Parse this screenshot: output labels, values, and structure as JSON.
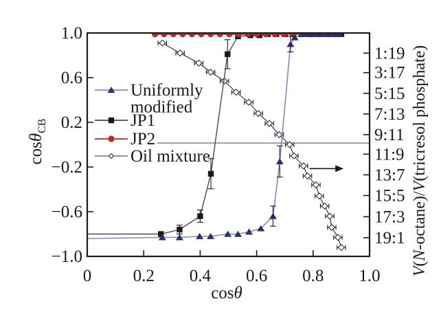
{
  "figure": {
    "background": "#ffffff",
    "frame_color": "#1a1a1a",
    "text_color": "#1a1a1a"
  },
  "chart_data": {
    "type": "line",
    "title": "",
    "x_axis": {
      "title_parts": [
        {
          "t": "cos"
        },
        {
          "t": "θ",
          "italic": true
        }
      ],
      "range": [
        0,
        1.0
      ],
      "ticks": [
        0,
        0.2,
        0.4,
        0.6,
        0.8,
        1.0
      ],
      "tick_labels": [
        "0",
        "0.2",
        "0.4",
        "0.6",
        "0.8",
        "1.0"
      ]
    },
    "left_axis": {
      "title_parts": [
        {
          "t": "cos"
        },
        {
          "t": "θ",
          "italic": true
        },
        {
          "t": "CB",
          "sub": true
        }
      ],
      "range": [
        -1.0,
        1.0
      ],
      "ticks": [
        1.0,
        0.6,
        0.2,
        -0.2,
        -0.6,
        -1.0
      ],
      "tick_labels": [
        "1.0",
        "0.6",
        "0.2",
        "−0.2",
        "−0.6",
        "−1.0"
      ]
    },
    "right_axis": {
      "title_parts": [
        {
          "t": "V",
          "italic": true
        },
        {
          "t": "("
        },
        {
          "t": "N",
          "italic": true
        },
        {
          "t": "-octane)/"
        },
        {
          "t": "V",
          "italic": true
        },
        {
          "t": "(tricresol phosphate)"
        }
      ],
      "ticks": [
        {
          "label": "1:19",
          "y": 0.82
        },
        {
          "label": "3:17",
          "y": 0.645
        },
        {
          "label": "5:15",
          "y": 0.46
        },
        {
          "label": "7:13",
          "y": 0.275
        },
        {
          "label": "9:11",
          "y": 0.09
        },
        {
          "label": "11:9",
          "y": -0.085
        },
        {
          "label": "13:7",
          "y": -0.27
        },
        {
          "label": "15:5",
          "y": -0.455
        },
        {
          "label": "17:3",
          "y": -0.645
        },
        {
          "label": "19:1",
          "y": -0.833
        }
      ]
    },
    "grid": false,
    "legend_position": "inside-left",
    "series": [
      {
        "id": "uniformly-modified",
        "legend_label_lines": [
          "Uniformly",
          "modified"
        ],
        "marker": "triangle",
        "line_color": "#7490bd",
        "marker_color": "#2c2c72",
        "points": [
          {
            "x": 0.0,
            "y": -0.84,
            "m": false
          },
          {
            "x": 0.266,
            "y": -0.83
          },
          {
            "x": 0.327,
            "y": -0.83
          },
          {
            "x": 0.398,
            "y": -0.82
          },
          {
            "x": 0.437,
            "y": -0.82
          },
          {
            "x": 0.498,
            "y": -0.8
          },
          {
            "x": 0.534,
            "y": -0.8
          },
          {
            "x": 0.573,
            "y": -0.78
          },
          {
            "x": 0.615,
            "y": -0.75
          },
          {
            "x": 0.658,
            "y": -0.64,
            "e": 0.09
          },
          {
            "x": 0.682,
            "y": -0.15,
            "e": 0.14
          },
          {
            "x": 0.72,
            "y": 0.9,
            "e": 0.07
          },
          {
            "x": 0.735,
            "y": 0.96
          },
          {
            "x": 0.76,
            "y": 0.99
          },
          {
            "x": 0.775,
            "y": 0.99
          },
          {
            "x": 0.79,
            "y": 0.99
          },
          {
            "x": 0.805,
            "y": 0.99
          },
          {
            "x": 0.82,
            "y": 0.99
          },
          {
            "x": 0.835,
            "y": 0.99
          },
          {
            "x": 0.85,
            "y": 0.99
          },
          {
            "x": 0.865,
            "y": 0.99
          },
          {
            "x": 0.88,
            "y": 0.99
          },
          {
            "x": 0.895,
            "y": 0.99
          }
        ]
      },
      {
        "id": "jp1",
        "legend_label_lines": [
          "JP1"
        ],
        "marker": "square",
        "line_color": "#4a4a4a",
        "marker_color": "#1a1a1a",
        "points": [
          {
            "x": 0.0,
            "y": -0.8,
            "m": false
          },
          {
            "x": 0.261,
            "y": -0.8
          },
          {
            "x": 0.327,
            "y": -0.76,
            "e": 0.04
          },
          {
            "x": 0.4,
            "y": -0.64,
            "e": 0.055
          },
          {
            "x": 0.438,
            "y": -0.26,
            "e": 0.135
          },
          {
            "x": 0.497,
            "y": 0.81,
            "e": 0.13
          },
          {
            "x": 0.534,
            "y": 0.97
          },
          {
            "x": 0.578,
            "y": 0.98
          },
          {
            "x": 0.61,
            "y": 0.98
          },
          {
            "x": 0.64,
            "y": 0.99
          },
          {
            "x": 0.67,
            "y": 0.99
          },
          {
            "x": 0.7,
            "y": 0.99
          },
          {
            "x": 0.73,
            "y": 0.99
          },
          {
            "x": 0.76,
            "y": 0.99
          },
          {
            "x": 0.79,
            "y": 0.99
          },
          {
            "x": 0.82,
            "y": 0.99
          },
          {
            "x": 0.85,
            "y": 0.99
          },
          {
            "x": 0.88,
            "y": 0.99
          },
          {
            "x": 0.9,
            "y": 0.99
          }
        ]
      },
      {
        "id": "jp2",
        "legend_label_lines": [
          "JP2"
        ],
        "marker": "circle",
        "line_color": "#c0281e",
        "marker_color": "#c0281e",
        "points": [
          {
            "x": 0.24,
            "y": 0.99
          },
          {
            "x": 0.272,
            "y": 0.99
          },
          {
            "x": 0.305,
            "y": 0.99
          },
          {
            "x": 0.338,
            "y": 0.99
          },
          {
            "x": 0.371,
            "y": 0.99
          },
          {
            "x": 0.404,
            "y": 0.99
          },
          {
            "x": 0.437,
            "y": 0.99
          },
          {
            "x": 0.47,
            "y": 0.99
          },
          {
            "x": 0.503,
            "y": 0.99
          },
          {
            "x": 0.536,
            "y": 0.99
          },
          {
            "x": 0.569,
            "y": 0.99
          },
          {
            "x": 0.6,
            "y": 0.99
          },
          {
            "x": 0.632,
            "y": 0.99
          },
          {
            "x": 0.664,
            "y": 0.99
          },
          {
            "x": 0.696,
            "y": 0.99
          },
          {
            "x": 0.728,
            "y": 0.99
          },
          {
            "x": 0.76,
            "y": 0.99
          },
          {
            "x": 0.792,
            "y": 0.99
          },
          {
            "x": 0.824,
            "y": 0.99
          },
          {
            "x": 0.858,
            "y": 0.99
          },
          {
            "x": 0.89,
            "y": 0.99
          }
        ]
      },
      {
        "id": "oil-mixture",
        "legend_label_lines": [
          "Oil mixture"
        ],
        "marker": "diamond-open",
        "line_color": "#2a2a2a",
        "marker_color": "#ffffff",
        "marker_stroke": "#2a2a2a",
        "x_error": 0.015,
        "points": [
          {
            "x": 0.266,
            "y": 0.91
          },
          {
            "x": 0.329,
            "y": 0.82
          },
          {
            "x": 0.395,
            "y": 0.73
          },
          {
            "x": 0.437,
            "y": 0.65
          },
          {
            "x": 0.486,
            "y": 0.57
          },
          {
            "x": 0.527,
            "y": 0.47
          },
          {
            "x": 0.572,
            "y": 0.38
          },
          {
            "x": 0.606,
            "y": 0.28
          },
          {
            "x": 0.645,
            "y": 0.19
          },
          {
            "x": 0.68,
            "y": 0.09
          },
          {
            "x": 0.717,
            "y": 0.0
          },
          {
            "x": 0.732,
            "y": -0.1
          },
          {
            "x": 0.766,
            "y": -0.19
          },
          {
            "x": 0.78,
            "y": -0.28
          },
          {
            "x": 0.81,
            "y": -0.36
          },
          {
            "x": 0.822,
            "y": -0.46
          },
          {
            "x": 0.841,
            "y": -0.55
          },
          {
            "x": 0.859,
            "y": -0.64
          },
          {
            "x": 0.866,
            "y": -0.74
          },
          {
            "x": 0.888,
            "y": -0.83
          },
          {
            "x": 0.9,
            "y": -0.92
          }
        ]
      }
    ],
    "annotations": {
      "zero_line": {
        "y": 0.015,
        "x_start": 0.248,
        "x_end": 1.0,
        "color": "#5a5a5a"
      },
      "right_axis_arrow": {
        "y": -0.214,
        "x_start": 0.787,
        "x_end": 0.908,
        "color": "#1a1a1a"
      }
    }
  }
}
